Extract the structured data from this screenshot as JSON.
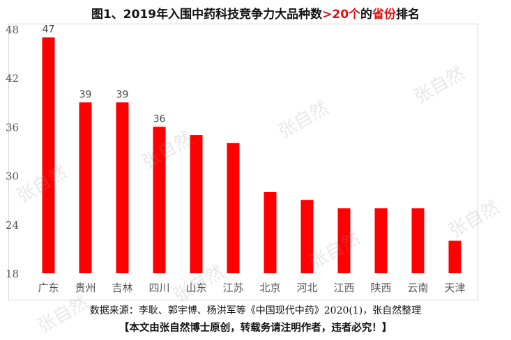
{
  "title": {
    "prefix": "图1、2019年入围中药科技竞争力大品种数",
    "highlight1": ">20个",
    "middle": "的",
    "highlight2": "省份",
    "suffix": "排名"
  },
  "footer": {
    "source": "数据来源：李耿、郭宇博、杨洪军等《中国现代中药》2020(1)，张自然整理",
    "notice": "【本文由张自然博士原创，转载务请注明作者，违者必究！】"
  },
  "watermark": {
    "text": "张自然"
  },
  "colors": {
    "bar": "#ff0000",
    "highlight": "#e01010"
  },
  "chart_data": {
    "type": "bar",
    "title": "图1、2019年入围中药科技竞争力大品种数>20个的省份排名",
    "xlabel": "",
    "ylabel": "",
    "ylim": [
      18,
      48
    ],
    "yticks": [
      18,
      24,
      30,
      36,
      42,
      48
    ],
    "grid": false,
    "categories": [
      "广东",
      "贵州",
      "吉林",
      "四川",
      "山东",
      "江苏",
      "北京",
      "河北",
      "江西",
      "陕西",
      "云南",
      "天津"
    ],
    "values": [
      47,
      39,
      39,
      36,
      35,
      34,
      28,
      27,
      26,
      26,
      26,
      22
    ],
    "data_labels": [
      "47",
      "39",
      "39",
      "36",
      null,
      null,
      null,
      null,
      null,
      null,
      null,
      null
    ]
  }
}
